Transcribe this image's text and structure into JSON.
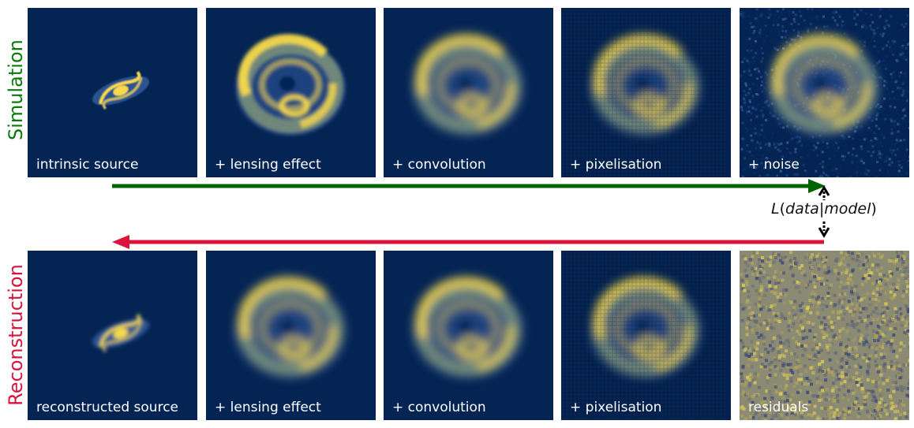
{
  "rows": {
    "simulation": {
      "label": "Simulation",
      "color": "#0a7a0a",
      "panels": [
        {
          "caption": "intrinsic source",
          "kind": "source-small"
        },
        {
          "caption": "+ lensing effect",
          "kind": "ring-sharp"
        },
        {
          "caption": "+ convolution",
          "kind": "ring-blur"
        },
        {
          "caption": "+ pixelisation",
          "kind": "ring-pixel"
        },
        {
          "caption": "+ noise",
          "kind": "ring-noise"
        }
      ]
    },
    "reconstruction": {
      "label": "Reconstruction",
      "color": "#d6143c",
      "panels": [
        {
          "caption": "reconstructed source",
          "kind": "source-recon"
        },
        {
          "caption": "+ lensing effect",
          "kind": "ring-blur"
        },
        {
          "caption": "+ convolution",
          "kind": "ring-blur"
        },
        {
          "caption": "+ pixelisation",
          "kind": "ring-pixel"
        },
        {
          "caption": "residuals",
          "kind": "residuals"
        }
      ]
    }
  },
  "likelihood": {
    "symbol": "L",
    "open": "(",
    "left": "data",
    "bar": "|",
    "right": "model",
    "close": ")"
  },
  "colors": {
    "background": "#042454",
    "emission": "#f7d94a",
    "forward_arrow": "#006400",
    "backward_arrow": "#dc143c",
    "residual_base": "#8b8a72"
  }
}
